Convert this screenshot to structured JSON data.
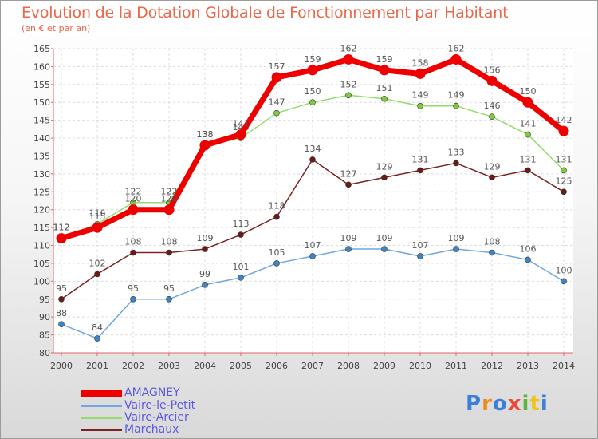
{
  "chart_data": {
    "type": "line",
    "title": "Evolution de la Dotation Globale de Fonctionnement par Habitant",
    "subtitle": "(en € et par an)",
    "xlabel": "",
    "ylabel": "",
    "categories": [
      "2000",
      "2001",
      "2002",
      "2003",
      "2004",
      "2005",
      "2006",
      "2007",
      "2008",
      "2009",
      "2010",
      "2011",
      "2012",
      "2013",
      "2014"
    ],
    "ylim": [
      80,
      165
    ],
    "yticks": [
      80,
      85,
      90,
      95,
      100,
      105,
      110,
      115,
      120,
      125,
      130,
      135,
      140,
      145,
      150,
      155,
      160,
      165
    ],
    "grid": true,
    "legend_position": "bottom-left",
    "series": [
      {
        "name": "AMAGNEY",
        "color": "#ee0000",
        "values": [
          112,
          115,
          120,
          120,
          138,
          141,
          157,
          159,
          162,
          159,
          158,
          162,
          156,
          150,
          142
        ]
      },
      {
        "name": "Vaire-le-Petit",
        "color": "#6fa8dc",
        "marker": "#3d85c6",
        "values": [
          88,
          84,
          95,
          95,
          99,
          101,
          105,
          107,
          109,
          109,
          107,
          109,
          108,
          106,
          100
        ]
      },
      {
        "name": "Vaire-Arcier",
        "color": "#93dd6a",
        "marker": "#7ccc3a",
        "values": [
          112,
          116,
          122,
          122,
          138,
          140,
          147,
          150,
          152,
          151,
          149,
          149,
          146,
          141,
          131
        ]
      },
      {
        "name": "Marchaux",
        "color": "#7a2323",
        "marker": "#6b1a1a",
        "values": [
          95,
          102,
          108,
          108,
          109,
          113,
          118,
          134,
          127,
          129,
          131,
          133,
          129,
          131,
          125
        ]
      }
    ]
  },
  "logo": {
    "text": "Proxiti",
    "letters": [
      "P",
      "r",
      "o",
      "x",
      "i",
      "t",
      "i"
    ],
    "colors": [
      "#3d7fd8",
      "#f08a1c",
      "#3d7fd8",
      "#e84b3c",
      "#59b638",
      "#f0c419",
      "#3d7fd8"
    ]
  }
}
